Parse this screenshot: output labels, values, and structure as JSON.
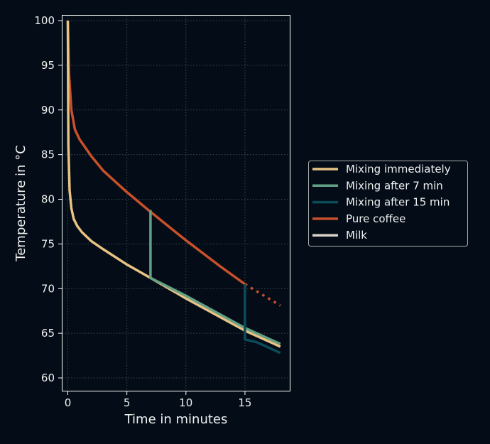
{
  "chart_data": {
    "type": "line",
    "title": "",
    "xlabel": "Time in minutes",
    "ylabel": "Temperature in °C",
    "xlim": [
      -0.5,
      18.9
    ],
    "ylim": [
      58.6,
      100.6
    ],
    "xticks": [
      0,
      5,
      10,
      15
    ],
    "yticks": [
      60,
      65,
      70,
      75,
      80,
      85,
      90,
      95,
      100
    ],
    "grid": true,
    "legend_position": "outside right",
    "series": [
      {
        "name": "Mixing immediately",
        "color": "#e8c384",
        "x": [
          0,
          0.05,
          0.15,
          0.3,
          0.5,
          0.8,
          1.2,
          2,
          3,
          5,
          7,
          10,
          15,
          18
        ],
        "y": [
          100,
          86,
          81,
          79,
          77.8,
          77,
          76.3,
          75.3,
          74.4,
          72.7,
          71.2,
          68.9,
          65.3,
          63.5
        ]
      },
      {
        "name": "Mixing after 7 min",
        "color": "#63a084",
        "x": [
          7,
          7,
          10,
          15,
          18
        ],
        "y": [
          78.8,
          71.2,
          69.2,
          65.6,
          63.8
        ]
      },
      {
        "name": "Mixing after 15 min",
        "color": "#0b4c5b",
        "x": [
          15,
          15,
          16,
          18
        ],
        "y": [
          70.5,
          64.3,
          64,
          62.8
        ]
      },
      {
        "name": "Pure coffee",
        "color": "#c8502a",
        "x": [
          0,
          0.1,
          0.3,
          0.6,
          1,
          2,
          3,
          5,
          7,
          10,
          13,
          15
        ],
        "y": [
          100,
          94,
          90,
          87.8,
          86.7,
          84.8,
          83.2,
          80.8,
          78.6,
          75.4,
          72.4,
          70.5
        ],
        "extension": {
          "style": "dotted",
          "x": [
            15,
            18
          ],
          "y": [
            70.5,
            68.1
          ]
        }
      },
      {
        "name": "Milk",
        "color": "#d9d3c8",
        "x": [],
        "y": []
      }
    ]
  }
}
